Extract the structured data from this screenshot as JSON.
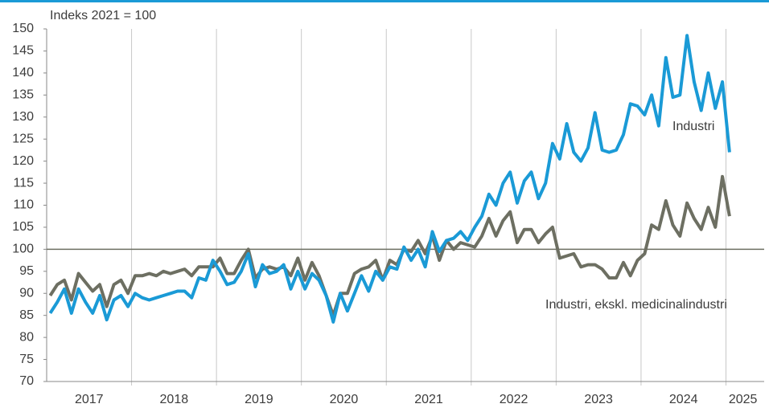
{
  "chart_data": {
    "type": "line",
    "y_axis_label": "Indeks 2021 = 100",
    "x": [
      2017.042,
      2017.125,
      2017.208,
      2017.292,
      2017.375,
      2017.458,
      2017.542,
      2017.625,
      2017.708,
      2017.792,
      2017.875,
      2017.958,
      2018.042,
      2018.125,
      2018.208,
      2018.292,
      2018.375,
      2018.458,
      2018.542,
      2018.625,
      2018.708,
      2018.792,
      2018.875,
      2018.958,
      2019.042,
      2019.125,
      2019.208,
      2019.292,
      2019.375,
      2019.458,
      2019.542,
      2019.625,
      2019.708,
      2019.792,
      2019.875,
      2019.958,
      2020.042,
      2020.125,
      2020.208,
      2020.292,
      2020.375,
      2020.458,
      2020.542,
      2020.625,
      2020.708,
      2020.792,
      2020.875,
      2020.958,
      2021.042,
      2021.125,
      2021.208,
      2021.292,
      2021.375,
      2021.458,
      2021.542,
      2021.625,
      2021.708,
      2021.792,
      2021.875,
      2021.958,
      2022.042,
      2022.125,
      2022.208,
      2022.292,
      2022.375,
      2022.458,
      2022.542,
      2022.625,
      2022.708,
      2022.792,
      2022.875,
      2022.958,
      2023.042,
      2023.125,
      2023.208,
      2023.292,
      2023.375,
      2023.458,
      2023.542,
      2023.625,
      2023.708,
      2023.792,
      2023.875,
      2023.958,
      2024.042,
      2024.125,
      2024.208,
      2024.292,
      2024.375,
      2024.458,
      2024.542,
      2024.625,
      2024.708,
      2024.792,
      2024.875,
      2024.958,
      2025.042
    ],
    "series": [
      {
        "name": "Industri",
        "color": "#1a9ad6",
        "values": [
          85.5,
          88,
          91,
          85.5,
          91,
          88,
          85.5,
          89.5,
          84,
          88.5,
          89.5,
          87,
          90,
          89,
          88.5,
          89,
          89.5,
          90,
          90.5,
          90.5,
          89,
          93.5,
          93,
          97.5,
          95,
          92,
          92.5,
          95,
          99,
          91.5,
          96.5,
          94.5,
          95,
          96.5,
          91,
          95,
          91,
          94.5,
          93,
          89.5,
          83.5,
          90,
          86,
          90,
          94,
          90.5,
          95,
          93,
          96,
          95.5,
          100.5,
          97.5,
          100,
          96,
          104,
          99.5,
          102,
          102.5,
          104,
          102,
          105,
          107.5,
          112.5,
          110,
          115,
          117.5,
          110.5,
          115.5,
          117.5,
          111.5,
          115,
          124,
          120.5,
          128.5,
          122,
          120,
          123,
          131,
          122.5,
          122,
          122.5,
          126,
          133,
          132.5,
          130.5,
          135,
          128,
          143.5,
          134.5,
          135,
          148.5,
          138,
          131.5,
          140,
          132,
          138,
          122
        ]
      },
      {
        "name": "Industri, ekskl. medicinalindustri",
        "color": "#6d6f62",
        "values": [
          89.5,
          92,
          93,
          88.5,
          94.5,
          92.5,
          90.5,
          92,
          87,
          92,
          93,
          90,
          94,
          94,
          94.5,
          94,
          95,
          94.5,
          95,
          95.5,
          94,
          96,
          96,
          96,
          98,
          94.5,
          94.5,
          97.5,
          100,
          93.5,
          95.5,
          96,
          95.5,
          96,
          94,
          98,
          93,
          97,
          94,
          89.5,
          85,
          90,
          90,
          94.5,
          95.5,
          96,
          97.5,
          93,
          97.5,
          96.5,
          100,
          99.5,
          102,
          99,
          103,
          97.5,
          102,
          100,
          101.5,
          101,
          100.5,
          103,
          107,
          103,
          106.5,
          108.5,
          101.5,
          104.5,
          104.5,
          101.5,
          103.5,
          105,
          98,
          98.5,
          99,
          96,
          96.5,
          96.5,
          95.5,
          93.5,
          93.5,
          97,
          94,
          97.5,
          99,
          105.5,
          104.5,
          111,
          105.5,
          103,
          110.5,
          107,
          104.5,
          109.5,
          105,
          116.5,
          107.5
        ]
      }
    ],
    "xlim": [
      2017,
      2025.45
    ],
    "xticks": [
      {
        "value": 2017.5,
        "label": "2017"
      },
      {
        "value": 2018.5,
        "label": "2018"
      },
      {
        "value": 2019.5,
        "label": "2019"
      },
      {
        "value": 2020.5,
        "label": "2020"
      },
      {
        "value": 2021.5,
        "label": "2021"
      },
      {
        "value": 2022.5,
        "label": "2022"
      },
      {
        "value": 2023.5,
        "label": "2023"
      },
      {
        "value": 2024.5,
        "label": "2024"
      },
      {
        "value": 2025.2,
        "label": "2025"
      }
    ],
    "x_gridlines": [
      2018,
      2019,
      2020,
      2021,
      2022,
      2023,
      2024,
      2025
    ],
    "ylim": [
      70,
      150
    ],
    "yticks": [
      70,
      75,
      80,
      85,
      90,
      95,
      100,
      105,
      110,
      115,
      120,
      125,
      130,
      135,
      140,
      145,
      150
    ],
    "reference_line": 100
  }
}
